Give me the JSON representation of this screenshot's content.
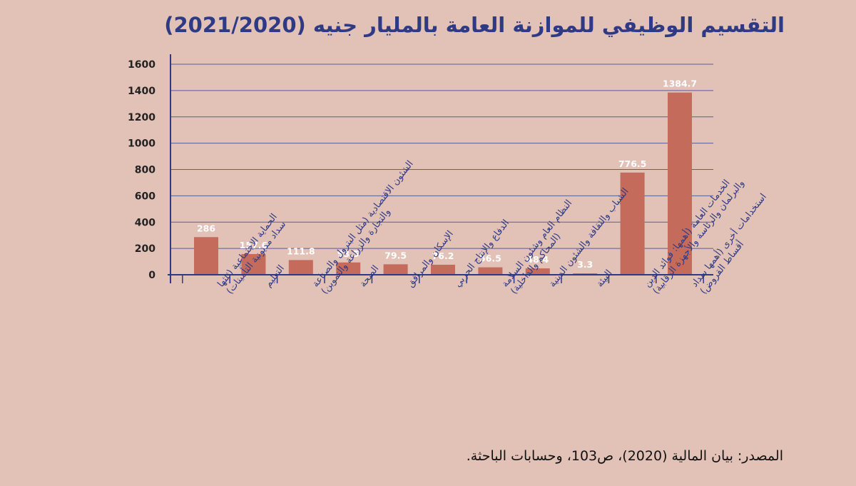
{
  "chart_data": {
    "type": "bar",
    "title": "التقسيم الوظيفي للموازنة العامة بالمليار جنيه  (2021/2020)",
    "xlabel": "",
    "ylabel": "",
    "ylim": [
      0,
      1600
    ],
    "yticks": [
      0,
      200,
      400,
      600,
      800,
      1000,
      1200,
      1400,
      1600
    ],
    "grid": true,
    "categories": [
      [
        "الحماية الاجتماعية (ثلثها",
        "سداد مديونية التأمينات)"
      ],
      [
        "التعليم"
      ],
      [
        "الشئون الاقتصادية  (مثل البترول والصناعة",
        "والتجارة والزراعة والتموين)"
      ],
      [
        "الصحة"
      ],
      [
        "الإسكان والمرافق"
      ],
      [
        "الدفاع والإنتاج الحربي"
      ],
      [
        "النظام العام وشئون السلامة",
        "(المحاكم والداخلية)"
      ],
      [
        "الشباب والثقافة والشئون الدينية"
      ],
      [
        "البيئة"
      ],
      [
        "الخدمات العامة  (أهمها: فوائد الدين",
        "والبرلمان والرئاسة والأجهزة الرقابية)"
      ],
      [
        "استخدامات أخرى  (أهمها سداد",
        "أقساط القروض)"
      ]
    ],
    "values": [
      286,
      157.6,
      111.8,
      93.5,
      79.5,
      76.2,
      56.5,
      48.4,
      3.3,
      776.5,
      1384.7
    ],
    "value_labels": [
      "286",
      "157.6",
      "111.8",
      "93.5",
      "79.5",
      "76.2",
      "56.5",
      "48.4",
      "3.3",
      "776.5",
      "1384.7"
    ]
  },
  "source": "المصدر: بيان المالية (2020)، ص103، وحسابات الباحثة.",
  "colors": {
    "background": "#e2c1b7",
    "bar": "#c46b5c",
    "axis": "#2e3a86",
    "grid": "#5a5e9a",
    "title": "#2e3a86"
  }
}
